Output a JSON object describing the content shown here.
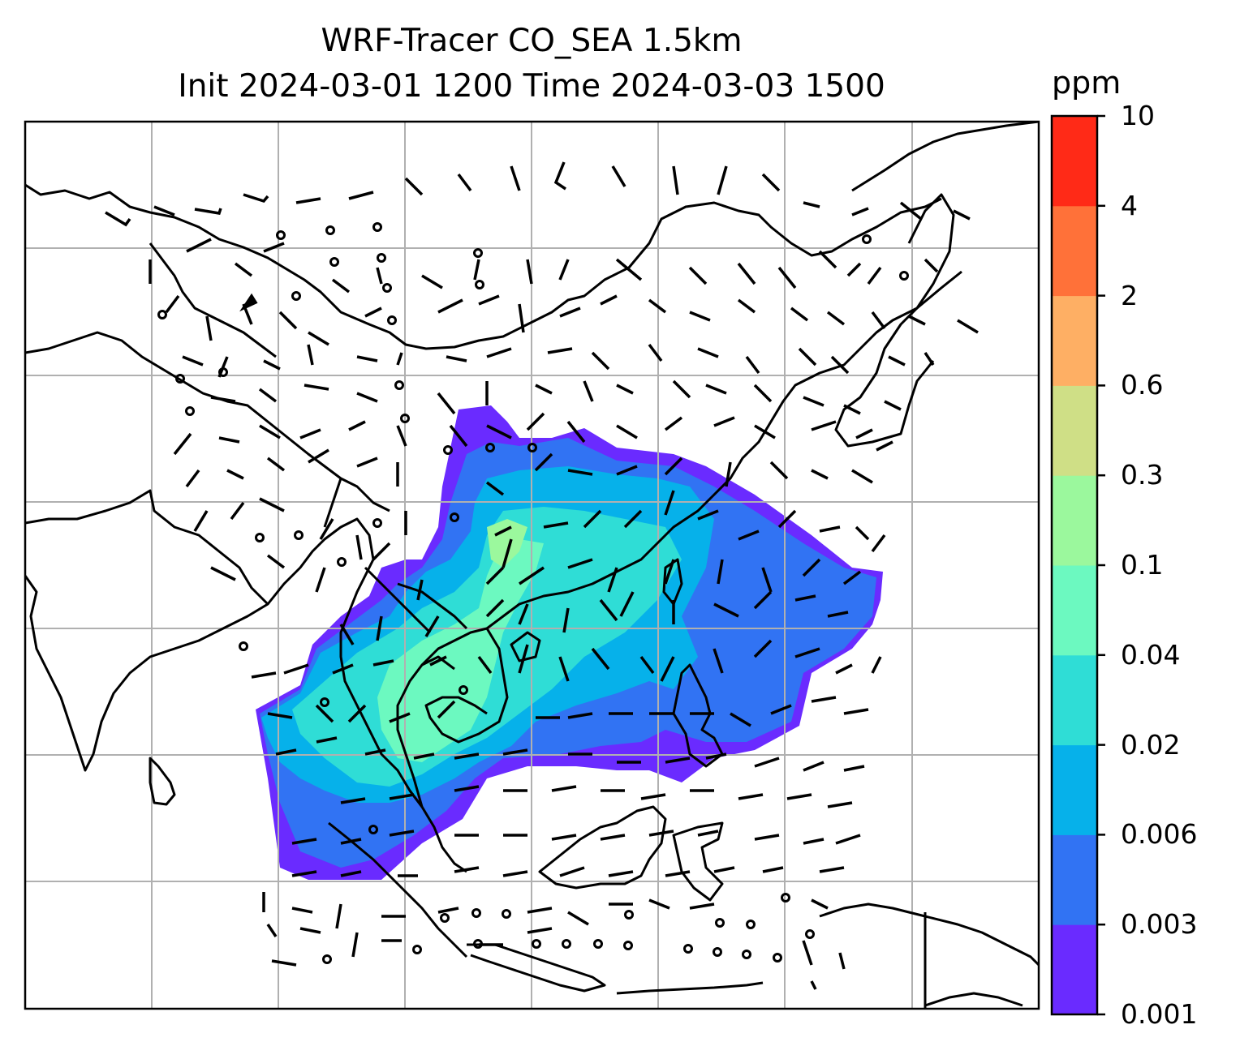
{
  "title_line1": "WRF-Tracer CO_SEA 1.5km",
  "title_line2": "Init 2024-03-01 1200 Time 2024-03-03 1500",
  "colorbar": {
    "unit": "ppm",
    "levels": [
      "0.001",
      "0.003",
      "0.006",
      "0.02",
      "0.04",
      "0.1",
      "0.3",
      "0.6",
      "2",
      "4",
      "10"
    ],
    "colors": [
      "#6a2bff",
      "#3173f3",
      "#06b1ea",
      "#2fddd6",
      "#6cf9c0",
      "#9bf89d",
      "#cfdf86",
      "#feaf64",
      "#ff7139",
      "#ff2a17"
    ]
  },
  "map": {
    "field": "CO tracer concentration",
    "region": "Southeast Asia",
    "gridlines": true,
    "wind_barbs": true,
    "coastline_color": "#000000",
    "grid_color": "#b0b0b0"
  }
}
